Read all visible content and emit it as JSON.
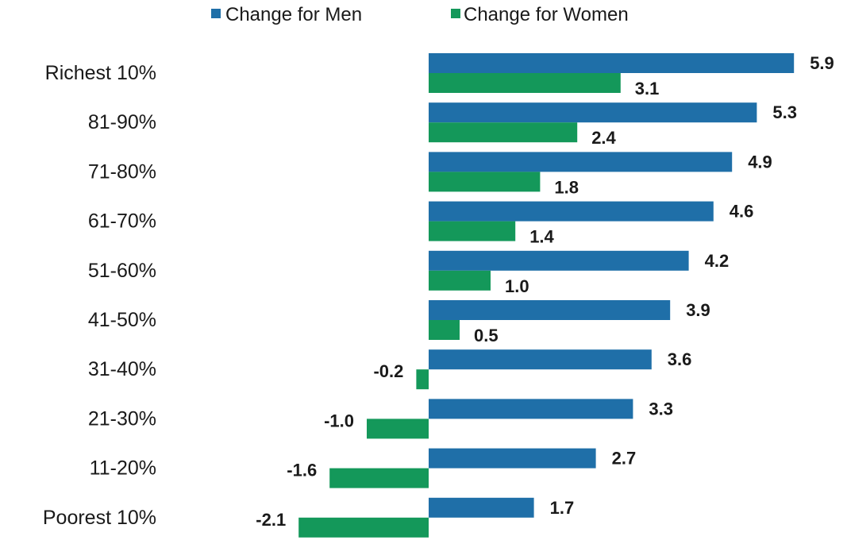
{
  "chart_data": {
    "type": "bar",
    "orientation": "horizontal",
    "categories": [
      "Richest 10%",
      "81-90%",
      "71-80%",
      "61-70%",
      "51-60%",
      "41-50%",
      "31-40%",
      "21-30%",
      "11-20%",
      "Poorest 10%"
    ],
    "series": [
      {
        "name": "Change for Men",
        "color": "#1f6fa8",
        "values": [
          5.9,
          5.3,
          4.9,
          4.6,
          4.2,
          3.9,
          3.6,
          3.3,
          2.7,
          1.7
        ],
        "labels": [
          "5.9",
          "5.3",
          "4.9",
          "4.6",
          "4.2",
          "3.9",
          "3.6",
          "3.3",
          "2.7",
          "1.7"
        ]
      },
      {
        "name": "Change for Women",
        "color": "#14985a",
        "values": [
          3.1,
          2.4,
          1.8,
          1.4,
          1.0,
          0.5,
          -0.2,
          -1.0,
          -1.6,
          -2.1
        ],
        "labels": [
          "3.1",
          "2.4",
          "1.8",
          "1.4",
          "1.0",
          "0.5",
          "-0.2",
          "-1.0",
          "-1.6",
          "-2.1"
        ]
      }
    ],
    "legend": {
      "position": "top",
      "items": [
        "Change for Men",
        "Change for Women"
      ]
    },
    "grid": false
  }
}
